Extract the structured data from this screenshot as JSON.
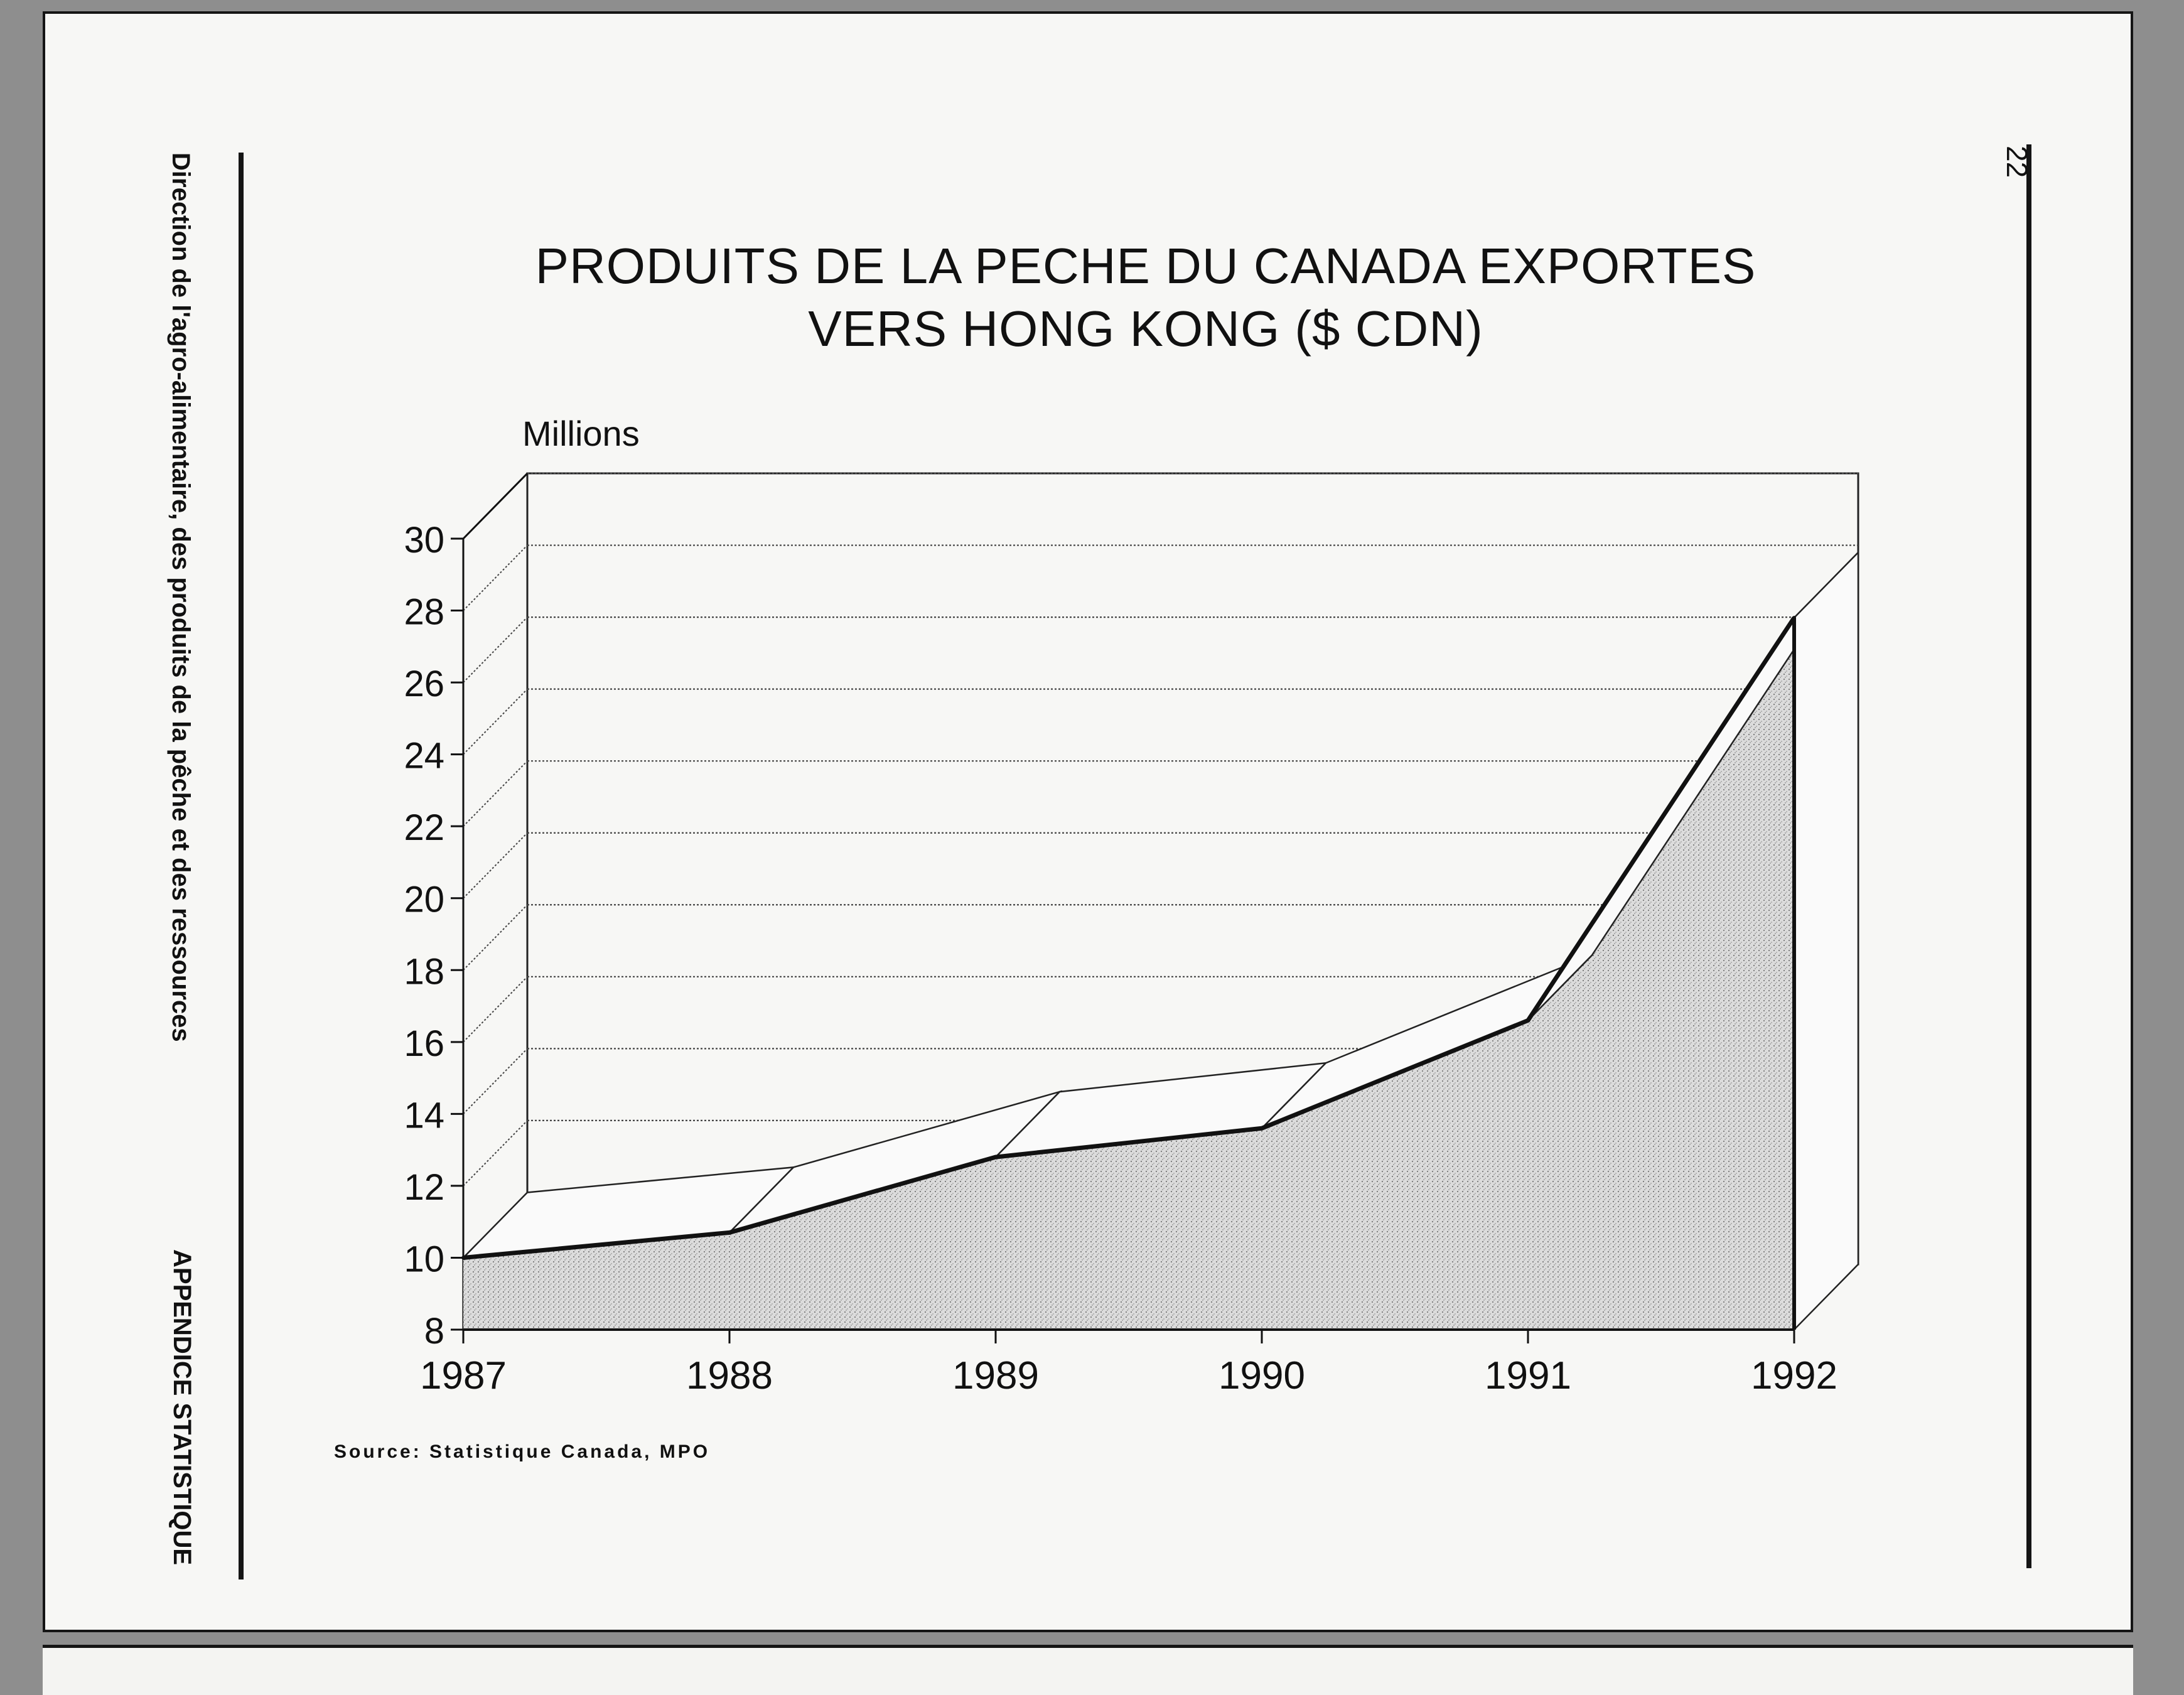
{
  "side_labels": {
    "left_top": "Direction de l'agro-alimentaire, des produits de la pêche et des ressources",
    "left_bottom": "APPENDICE STATISTIQUE",
    "page_number": "22"
  },
  "source": "Source: Statistique Canada, MPO",
  "chart_data": {
    "type": "area",
    "title_lines": [
      "PRODUITS DE LA PECHE DU CANADA EXPORTES",
      "VERS HONG KONG ($ CDN)"
    ],
    "ylabel": "Millions",
    "xlabel": "",
    "categories": [
      "1987",
      "1988",
      "1989",
      "1990",
      "1991",
      "1992"
    ],
    "series": [
      {
        "values": [
          10,
          10.7,
          12.8,
          13.6,
          16.6,
          27.8
        ]
      }
    ],
    "ylim": [
      8,
      30
    ],
    "yticks": [
      8,
      10,
      12,
      14,
      16,
      18,
      20,
      22,
      24,
      26,
      28,
      30
    ],
    "grid": true,
    "style": "3d area, stippled grey fill"
  }
}
